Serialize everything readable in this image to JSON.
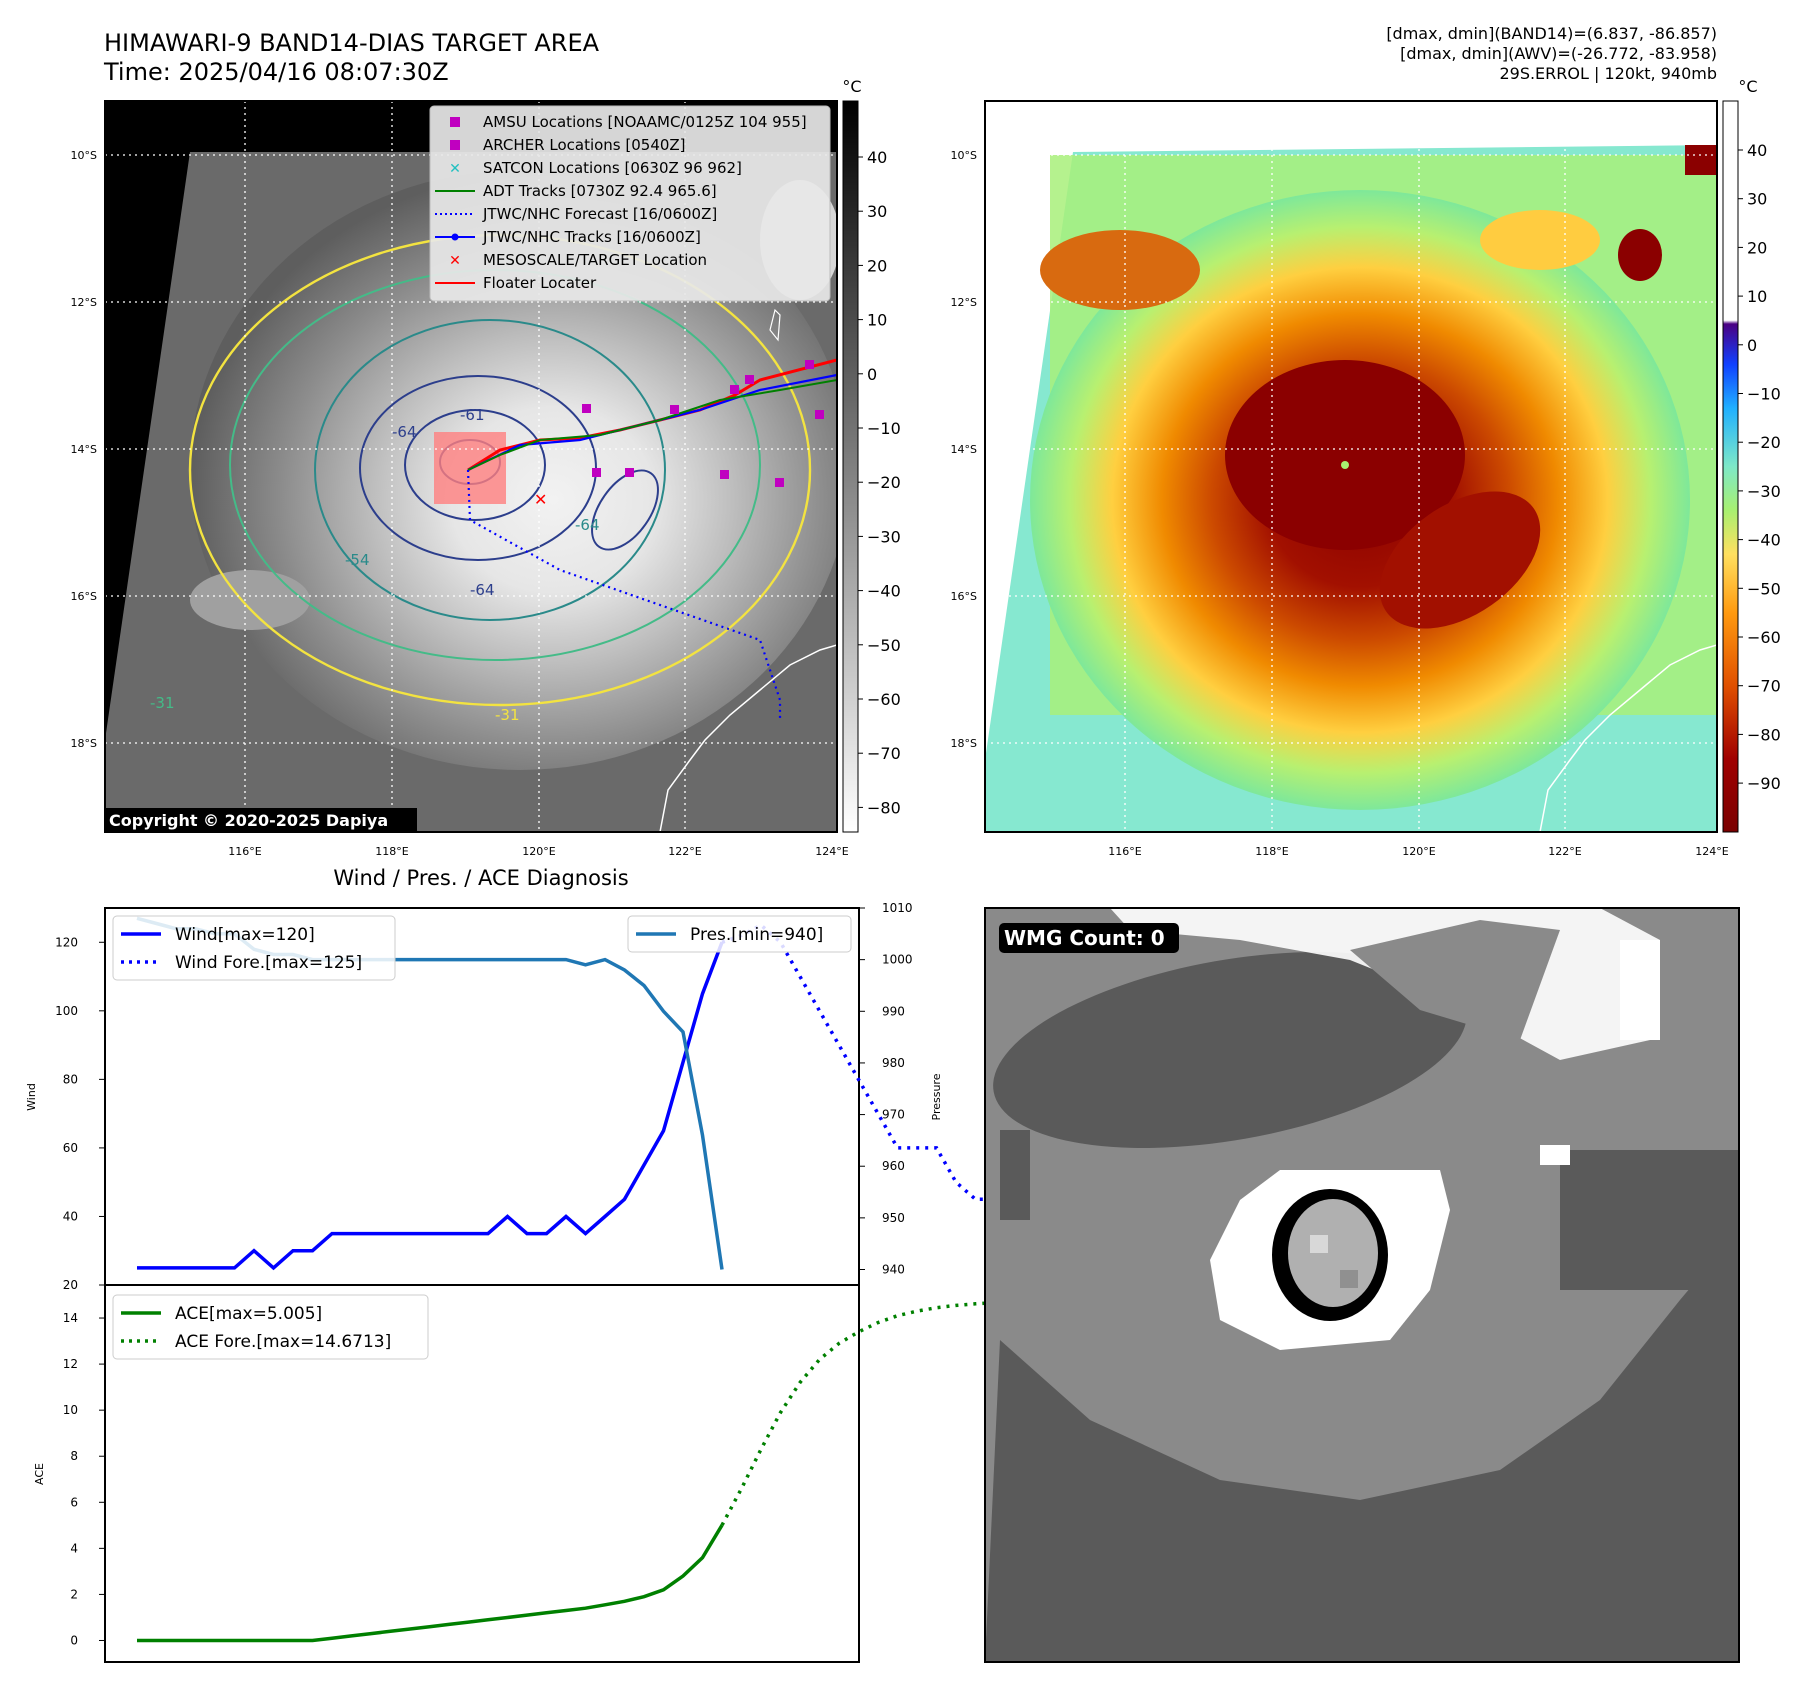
{
  "header": {
    "title_line1": "HIMAWARI-9 BAND14-DIAS TARGET AREA",
    "title_line2": "Time: 2025/04/16 08:07:30Z",
    "info_line1": "[dmax, dmin](BAND14)=(6.837, -86.857)",
    "info_line2": "[dmax, dmin](AWV)=(-26.772, -83.958)",
    "info_line3": "29S.ERROL | 120kt, 940mb"
  },
  "map": {
    "lat_labels": [
      "10°S",
      "12°S",
      "14°S",
      "16°S",
      "18°S"
    ],
    "lon_labels": [
      "116°E",
      "118°E",
      "120°E",
      "122°E",
      "124°E"
    ],
    "copyright": "Copyright © 2020-2025 Dapiya",
    "contour_labels": [
      "-64",
      "-54",
      "-31",
      "-64",
      "-61",
      "-64",
      "-31"
    ],
    "legend": [
      {
        "label": "AMSU Locations [NOAAMC/0125Z 104 955]",
        "color": "#c000c0",
        "marker": "square"
      },
      {
        "label": "ARCHER Locations [0540Z]",
        "color": "#c000c0",
        "marker": "square"
      },
      {
        "label": "SATCON Locations [0630Z 96 962]",
        "color": "#20c0c0",
        "marker": "x"
      },
      {
        "label": "ADT Tracks [0730Z 92.4 965.6]",
        "color": "#008000",
        "marker": "line"
      },
      {
        "label": "JTWC/NHC Forecast [16/0600Z]",
        "color": "#0000ff",
        "marker": "dotted"
      },
      {
        "label": "JTWC/NHC Tracks [16/0600Z]",
        "color": "#0000ff",
        "marker": "line-dot"
      },
      {
        "label": "MESOSCALE/TARGET Location",
        "color": "#ff0000",
        "marker": "x"
      },
      {
        "label": "Floater Locater",
        "color": "#ff0000",
        "marker": "line"
      }
    ]
  },
  "colorbar_gray": {
    "unit": "°C",
    "ticks": [
      "40",
      "30",
      "20",
      "10",
      "0",
      "−10",
      "−20",
      "−30",
      "−40",
      "−50",
      "−60",
      "−70",
      "−80"
    ]
  },
  "colorbar_color": {
    "unit": "°C",
    "ticks": [
      "40",
      "30",
      "20",
      "10",
      "0",
      "−10",
      "−20",
      "−30",
      "−40",
      "−50",
      "−60",
      "−70",
      "−80",
      "−90"
    ]
  },
  "wmg": {
    "label": "WMG Count: 0"
  },
  "chart_data": [
    {
      "type": "line",
      "title": "Wind / Pres. / ACE Diagnosis",
      "ylabel": "Wind",
      "y2label": "Pressure",
      "ylim": [
        20,
        130
      ],
      "y2lim": [
        937,
        1010
      ],
      "yticks": [
        "20",
        "40",
        "60",
        "80",
        "100",
        "120"
      ],
      "y2ticks": [
        "940",
        "950",
        "960",
        "970",
        "980",
        "990",
        "1000",
        "1010"
      ],
      "series": [
        {
          "name": "Wind[max=120]",
          "color": "#0000ff",
          "style": "solid",
          "values": [
            25,
            25,
            25,
            25,
            25,
            25,
            30,
            25,
            30,
            30,
            35,
            35,
            35,
            35,
            35,
            35,
            35,
            35,
            35,
            40,
            35,
            35,
            40,
            35,
            40,
            45,
            55,
            65,
            85,
            105,
            120
          ]
        },
        {
          "name": "Wind Fore.[max=125]",
          "color": "#0000ff",
          "style": "dotted",
          "values": [
            120,
            122,
            125,
            120,
            110,
            100,
            90,
            80,
            70,
            60,
            60,
            60,
            50,
            45,
            45,
            45,
            40
          ]
        },
        {
          "name": "Pres.[min=940]",
          "color": "#1f77b4",
          "style": "solid",
          "axis": "y2",
          "values": [
            1008,
            1007,
            1006,
            1006,
            1005,
            1005,
            1002,
            1001,
            1001,
            1000,
            1000,
            1000,
            1000,
            1000,
            1000,
            1000,
            1000,
            1000,
            1000,
            1000,
            1000,
            1000,
            1000,
            999,
            1000,
            998,
            995,
            990,
            986,
            966,
            940
          ]
        }
      ]
    },
    {
      "type": "line",
      "ylabel": "ACE",
      "ylim": [
        -0.5,
        15
      ],
      "yticks": [
        "0",
        "2",
        "4",
        "6",
        "8",
        "10",
        "12",
        "14"
      ],
      "series": [
        {
          "name": "ACE[max=5.005]",
          "color": "#008000",
          "style": "solid",
          "values": [
            0,
            0,
            0,
            0,
            0,
            0,
            0,
            0,
            0,
            0,
            0.1,
            0.2,
            0.3,
            0.4,
            0.5,
            0.6,
            0.7,
            0.8,
            0.9,
            1.0,
            1.1,
            1.2,
            1.3,
            1.4,
            1.55,
            1.7,
            1.9,
            2.2,
            2.8,
            3.6,
            5.005
          ]
        },
        {
          "name": "ACE Fore.[max=14.6713]",
          "color": "#008000",
          "style": "dotted",
          "values": [
            5.005,
            6.6,
            8.3,
            9.9,
            11.2,
            12.2,
            12.9,
            13.4,
            13.8,
            14.1,
            14.3,
            14.45,
            14.55,
            14.62,
            14.67
          ]
        }
      ]
    }
  ]
}
